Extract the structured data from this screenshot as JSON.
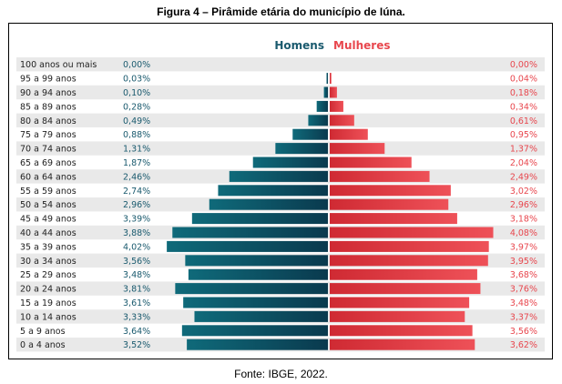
{
  "figure": {
    "title": "Figura 4 – Pirâmide etária do município de Iúna.",
    "source": "Fonte: IBGE, 2022."
  },
  "chart_data": {
    "type": "bar",
    "orientation": "horizontal-population-pyramid",
    "categories": [
      "100 anos ou mais",
      "95 a 99 anos",
      "90 a 94 anos",
      "85 a 89 anos",
      "80 a 84 anos",
      "75 a 79 anos",
      "70 a 74 anos",
      "65 a 69 anos",
      "60 a 64 anos",
      "55 a 59 anos",
      "50 a 54 anos",
      "45 a 49 anos",
      "40 a 44 anos",
      "35 a 39 anos",
      "30 a 34 anos",
      "25 a 29 anos",
      "20 a 24 anos",
      "15 a 19 anos",
      "10 a 14 anos",
      "5 a 9 anos",
      "0 a 4 anos"
    ],
    "series": [
      {
        "name": "Homens",
        "color": "#1a5a6e",
        "values": [
          0.0,
          0.03,
          0.1,
          0.28,
          0.49,
          0.88,
          1.31,
          1.87,
          2.46,
          2.74,
          2.96,
          3.39,
          3.88,
          4.02,
          3.56,
          3.48,
          3.81,
          3.61,
          3.33,
          3.64,
          3.52
        ],
        "labels": [
          "0,00%",
          "0,03%",
          "0,10%",
          "0,28%",
          "0,49%",
          "0,88%",
          "1,31%",
          "1,87%",
          "2,46%",
          "2,74%",
          "2,96%",
          "3,39%",
          "3,88%",
          "4,02%",
          "3,56%",
          "3,48%",
          "3,81%",
          "3,61%",
          "3,33%",
          "3,64%",
          "3,52%"
        ]
      },
      {
        "name": "Mulheres",
        "color": "#e8474e",
        "values": [
          0.0,
          0.04,
          0.18,
          0.34,
          0.61,
          0.95,
          1.37,
          2.04,
          2.49,
          3.02,
          2.96,
          3.18,
          4.08,
          3.97,
          3.95,
          3.68,
          3.76,
          3.48,
          3.37,
          3.56,
          3.62
        ],
        "labels": [
          "0,00%",
          "0,04%",
          "0,18%",
          "0,34%",
          "0,61%",
          "0,95%",
          "1,37%",
          "2,04%",
          "2,49%",
          "3,02%",
          "2,96%",
          "3,18%",
          "4,08%",
          "3,97%",
          "3,95%",
          "3,68%",
          "3,76%",
          "3,48%",
          "3,37%",
          "3,56%",
          "3,62%"
        ]
      }
    ],
    "legend_position": "top-center",
    "row_stripes": true,
    "stripe_color": "#e9e9e9"
  }
}
